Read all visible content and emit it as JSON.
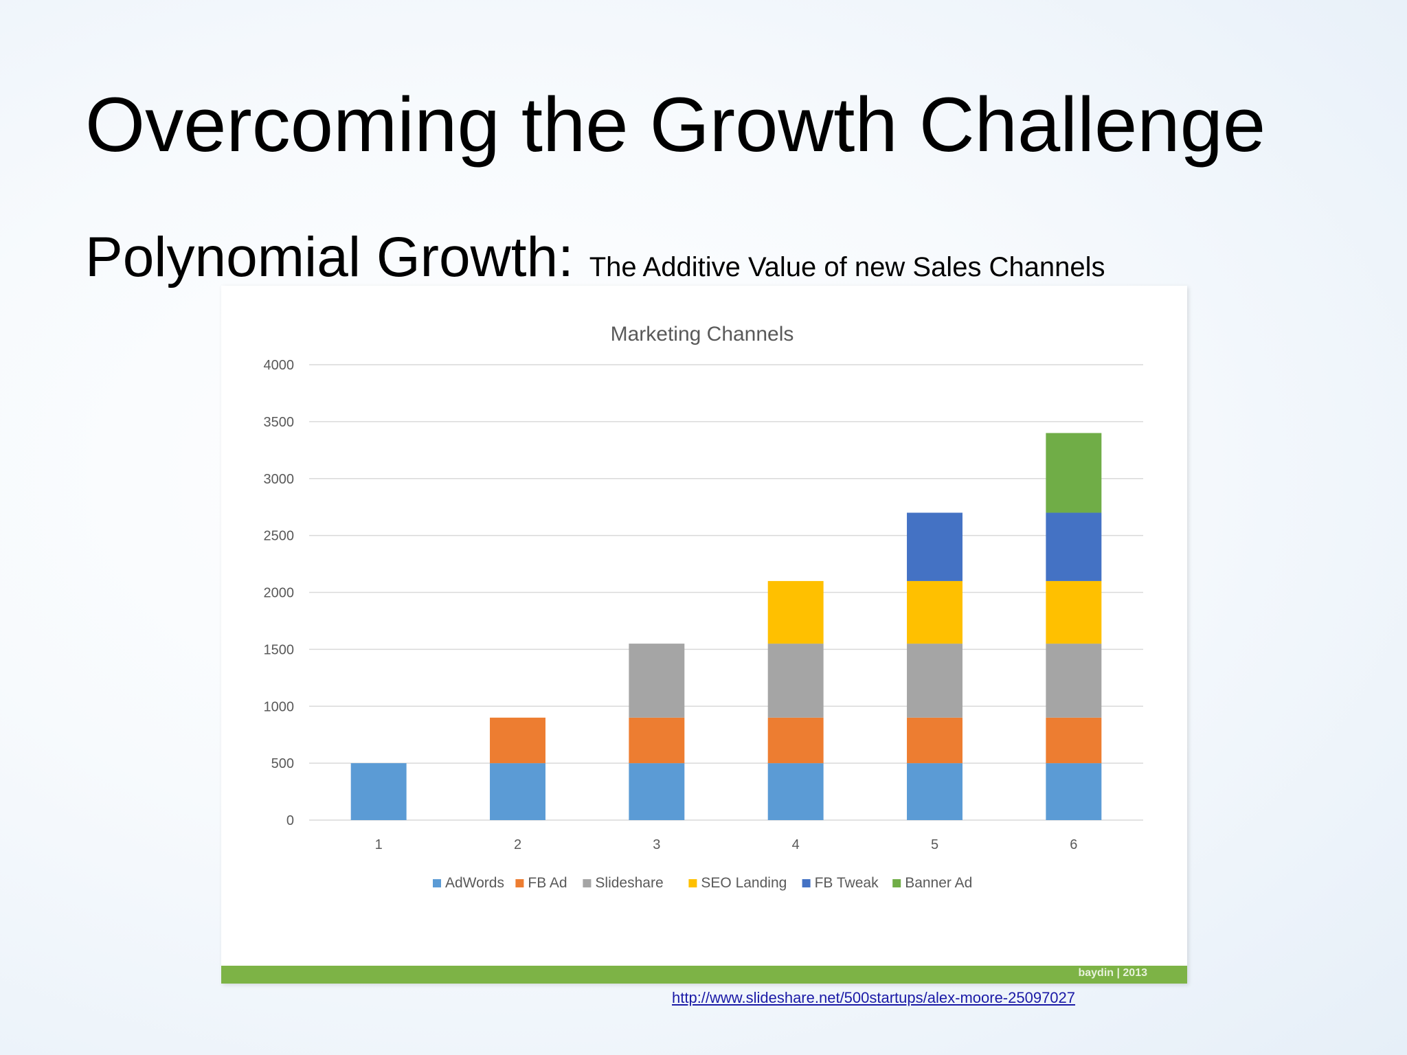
{
  "slide": {
    "title": "Overcoming the Growth Challenge",
    "subtitle_main": "Polynomial Growth: ",
    "subtitle_small": "The Additive Value of new Sales Channels",
    "source_link": "http://www.slideshare.net/500startups/alex-moore-25097027",
    "footer_credit": "baydin | 2013"
  },
  "chart_data": {
    "type": "bar",
    "stacked": true,
    "title": "Marketing Channels",
    "xlabel": "",
    "ylabel": "",
    "categories": [
      "1",
      "2",
      "3",
      "4",
      "5",
      "6"
    ],
    "ylim": [
      0,
      4000
    ],
    "yticks": [
      0,
      500,
      1000,
      1500,
      2000,
      2500,
      3000,
      3500,
      4000
    ],
    "ytick_labels": [
      "0",
      "500",
      "1000",
      "1500",
      "2000",
      "2500",
      "3000",
      "3500",
      "4000"
    ],
    "grid": true,
    "legend_position": "bottom",
    "series": [
      {
        "name": "AdWords",
        "color": "#5b9bd5",
        "values": [
          500,
          500,
          500,
          500,
          500,
          500
        ]
      },
      {
        "name": "FB Ad",
        "color": "#ed7d31",
        "values": [
          0,
          400,
          400,
          400,
          400,
          400
        ]
      },
      {
        "name": "Slideshare",
        "color": "#a5a5a5",
        "values": [
          0,
          0,
          650,
          650,
          650,
          650
        ]
      },
      {
        "name": "SEO Landing",
        "color": "#ffc000",
        "values": [
          0,
          0,
          0,
          550,
          550,
          550
        ]
      },
      {
        "name": "FB Tweak",
        "color": "#4472c4",
        "values": [
          0,
          0,
          0,
          0,
          600,
          600
        ]
      },
      {
        "name": "Banner Ad",
        "color": "#70ad47",
        "values": [
          0,
          0,
          0,
          0,
          0,
          700
        ]
      }
    ]
  }
}
